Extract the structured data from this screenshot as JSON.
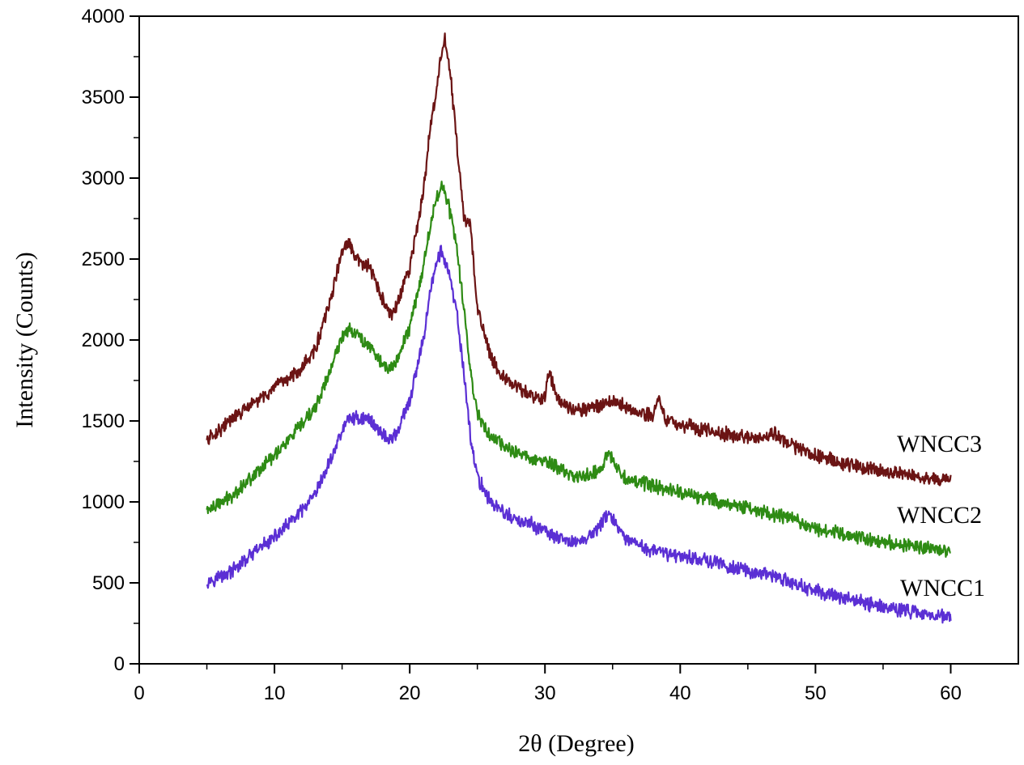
{
  "chart_data": {
    "type": "line",
    "title": "",
    "xlabel": "2θ (Degree)",
    "ylabel": "Intensity (Counts)",
    "xlim": [
      0,
      65
    ],
    "ylim": [
      0,
      4000
    ],
    "xticks": [
      0,
      10,
      20,
      30,
      40,
      50,
      60
    ],
    "yticks": [
      0,
      500,
      1000,
      1500,
      2000,
      2500,
      3000,
      3500,
      4000
    ],
    "xtick_labels": [
      "0",
      "10",
      "20",
      "30",
      "40",
      "50",
      "60"
    ],
    "ytick_labels": [
      "0",
      "500",
      "1000",
      "1500",
      "2000",
      "2500",
      "3000",
      "3500",
      "4000"
    ],
    "grid": false,
    "series": [
      {
        "name": "WNCC1",
        "label": "WNCC1",
        "color": "#5b2fd4",
        "x": [
          5,
          6,
          7,
          8,
          9,
          10,
          11,
          12,
          13,
          14,
          15,
          15.5,
          16,
          17,
          18,
          18.5,
          19,
          20,
          21,
          21.5,
          22,
          22.3,
          22.8,
          23.5,
          24,
          24.5,
          25,
          26,
          27,
          28,
          29,
          30,
          31,
          32,
          33,
          34,
          34.7,
          35.5,
          36,
          37,
          38,
          39,
          40,
          42,
          44,
          46,
          48,
          50,
          52,
          54,
          56,
          58,
          60
        ],
        "values": [
          510,
          540,
          580,
          650,
          720,
          780,
          860,
          940,
          1040,
          1230,
          1440,
          1520,
          1520,
          1510,
          1420,
          1380,
          1420,
          1620,
          2000,
          2300,
          2480,
          2550,
          2450,
          2150,
          1800,
          1400,
          1150,
          1000,
          930,
          880,
          860,
          820,
          770,
          750,
          770,
          840,
          940,
          820,
          760,
          730,
          700,
          680,
          670,
          640,
          590,
          560,
          510,
          450,
          410,
          370,
          340,
          310,
          290
        ]
      },
      {
        "name": "WNCC2",
        "label": "WNCC2",
        "color": "#2e8b14",
        "x": [
          5,
          6,
          7,
          8,
          9,
          10,
          11,
          12,
          13,
          14,
          15,
          15.5,
          16,
          17,
          18,
          18.5,
          19,
          20,
          21,
          21.5,
          22,
          22.3,
          22.8,
          23.5,
          24,
          24.5,
          25,
          26,
          27,
          28,
          29,
          30,
          31,
          32,
          33,
          34,
          34.7,
          35.5,
          36,
          37,
          38,
          39,
          40,
          42,
          44,
          46,
          48,
          50,
          52,
          54,
          56,
          58,
          60
        ],
        "values": [
          950,
          990,
          1050,
          1130,
          1210,
          1290,
          1380,
          1470,
          1580,
          1780,
          2020,
          2080,
          2040,
          1970,
          1850,
          1810,
          1870,
          2080,
          2450,
          2700,
          2880,
          2960,
          2870,
          2550,
          2200,
          1800,
          1550,
          1400,
          1340,
          1300,
          1270,
          1250,
          1210,
          1160,
          1160,
          1200,
          1290,
          1200,
          1150,
          1120,
          1100,
          1080,
          1060,
          1020,
          980,
          940,
          900,
          840,
          800,
          770,
          740,
          720,
          700
        ]
      },
      {
        "name": "WNCC3",
        "label": "WNCC3",
        "color": "#6b1414",
        "x": [
          5,
          6,
          7,
          8,
          9,
          10,
          11,
          12,
          13,
          14,
          15,
          15.5,
          16,
          17,
          18,
          18.5,
          19,
          20,
          21,
          21.5,
          22,
          22.3,
          22.6,
          23,
          23.5,
          24,
          24.5,
          25,
          26,
          27,
          28,
          29,
          30,
          30.3,
          31,
          32,
          33,
          34,
          35,
          36,
          37,
          38,
          38.4,
          39,
          40,
          42,
          44,
          46,
          47,
          48,
          50,
          52,
          54,
          56,
          58,
          60
        ],
        "values": [
          1380,
          1450,
          1520,
          1580,
          1640,
          1700,
          1760,
          1830,
          1940,
          2200,
          2550,
          2600,
          2500,
          2450,
          2250,
          2150,
          2200,
          2450,
          2900,
          3300,
          3550,
          3750,
          3850,
          3650,
          3200,
          2750,
          2700,
          2200,
          1900,
          1760,
          1700,
          1660,
          1640,
          1800,
          1630,
          1580,
          1570,
          1600,
          1620,
          1590,
          1550,
          1530,
          1640,
          1500,
          1480,
          1440,
          1410,
          1390,
          1420,
          1360,
          1290,
          1240,
          1210,
          1180,
          1150,
          1140
        ]
      }
    ]
  }
}
